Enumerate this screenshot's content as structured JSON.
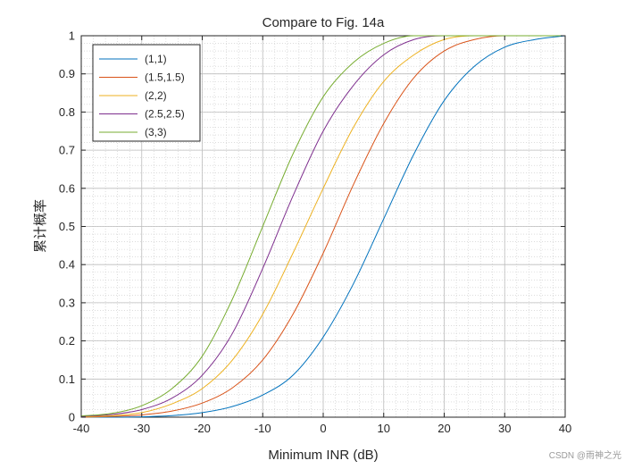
{
  "chart_data": {
    "type": "line",
    "title": "Compare to Fig. 14a",
    "xlabel": "Minimum INR (dB)",
    "ylabel": "累计概率",
    "xlim": [
      -40,
      40
    ],
    "ylim": [
      0,
      1
    ],
    "xticks": [
      -40,
      -30,
      -20,
      -10,
      0,
      10,
      20,
      30,
      40
    ],
    "yticks": [
      0,
      0.1,
      0.2,
      0.3,
      0.4,
      0.5,
      0.6,
      0.7,
      0.8,
      0.9,
      1
    ],
    "xtick_labels": [
      "-40",
      "-30",
      "-20",
      "-10",
      "0",
      "10",
      "20",
      "30",
      "40"
    ],
    "ytick_labels": [
      "0",
      "0.1",
      "0.2",
      "0.3",
      "0.4",
      "0.5",
      "0.6",
      "0.7",
      "0.8",
      "0.9",
      "1"
    ],
    "grid": true,
    "minor_grid": true,
    "legend_position": "top-left",
    "x": [
      -40,
      -35,
      -30,
      -25,
      -20,
      -15,
      -10,
      -5,
      0,
      5,
      10,
      15,
      20,
      25,
      30,
      35,
      40
    ],
    "series": [
      {
        "name": "(1,1)",
        "color": "#0072BD",
        "values": [
          0.0,
          0.0,
          0.001,
          0.004,
          0.012,
          0.028,
          0.058,
          0.11,
          0.21,
          0.35,
          0.52,
          0.69,
          0.83,
          0.92,
          0.97,
          0.99,
          1.0
        ]
      },
      {
        "name": "(1.5,1.5)",
        "color": "#D95319",
        "values": [
          0.0,
          0.002,
          0.006,
          0.016,
          0.037,
          0.077,
          0.15,
          0.27,
          0.43,
          0.61,
          0.77,
          0.89,
          0.96,
          0.99,
          1.0,
          1.0,
          1.0
        ]
      },
      {
        "name": "(2,2)",
        "color": "#EDB120",
        "values": [
          0.001,
          0.004,
          0.012,
          0.035,
          0.075,
          0.15,
          0.27,
          0.43,
          0.6,
          0.76,
          0.88,
          0.95,
          0.99,
          1.0,
          1.0,
          1.0,
          1.0
        ]
      },
      {
        "name": "(2.5,2.5)",
        "color": "#7E2F8E",
        "values": [
          0.002,
          0.007,
          0.02,
          0.05,
          0.11,
          0.22,
          0.39,
          0.58,
          0.75,
          0.87,
          0.95,
          0.99,
          1.0,
          1.0,
          1.0,
          1.0,
          1.0
        ]
      },
      {
        "name": "(3,3)",
        "color": "#77AC30",
        "values": [
          0.003,
          0.01,
          0.03,
          0.075,
          0.16,
          0.31,
          0.5,
          0.69,
          0.84,
          0.93,
          0.98,
          1.0,
          1.0,
          1.0,
          1.0,
          1.0,
          1.0
        ]
      }
    ]
  },
  "watermark": "CSDN @雨神之光"
}
